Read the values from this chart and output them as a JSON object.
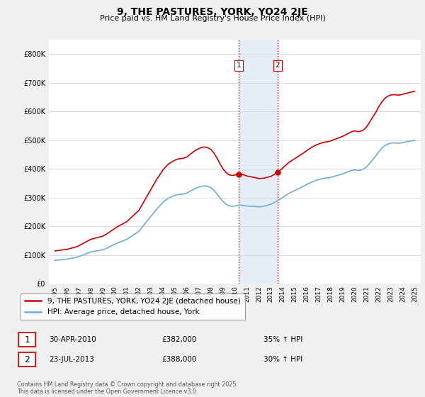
{
  "title": "9, THE PASTURES, YORK, YO24 2JE",
  "subtitle": "Price paid vs. HM Land Registry's House Price Index (HPI)",
  "ylim": [
    0,
    850000
  ],
  "yticks": [
    0,
    100000,
    200000,
    300000,
    400000,
    500000,
    600000,
    700000,
    800000
  ],
  "ytick_labels": [
    "£0",
    "£100K",
    "£200K",
    "£300K",
    "£400K",
    "£500K",
    "£600K",
    "£700K",
    "£800K"
  ],
  "hpi_color": "#6baed6",
  "price_color": "#cc0000",
  "marker_color": "#cc0000",
  "shading_color": "#c6dbef",
  "shading_alpha": 0.45,
  "vline_color": "#cc0000",
  "transaction1_x": 2010.33,
  "transaction1_y": 382000,
  "transaction2_x": 2013.55,
  "transaction2_y": 388000,
  "legend_line1": "9, THE PASTURES, YORK, YO24 2JE (detached house)",
  "legend_line2": "HPI: Average price, detached house, York",
  "annotation1_box": "1",
  "annotation1_date": "30-APR-2010",
  "annotation1_price": "£382,000",
  "annotation1_hpi": "35% ↑ HPI",
  "annotation2_box": "2",
  "annotation2_date": "23-JUL-2013",
  "annotation2_price": "£388,000",
  "annotation2_hpi": "30% ↑ HPI",
  "footer": "Contains HM Land Registry data © Crown copyright and database right 2025.\nThis data is licensed under the Open Government Licence v3.0.",
  "hpi_data_x": [
    1995,
    1995.25,
    1995.5,
    1995.75,
    1996,
    1996.25,
    1996.5,
    1996.75,
    1997,
    1997.25,
    1997.5,
    1997.75,
    1998,
    1998.25,
    1998.5,
    1998.75,
    1999,
    1999.25,
    1999.5,
    1999.75,
    2000,
    2000.25,
    2000.5,
    2000.75,
    2001,
    2001.25,
    2001.5,
    2001.75,
    2002,
    2002.25,
    2002.5,
    2002.75,
    2003,
    2003.25,
    2003.5,
    2003.75,
    2004,
    2004.25,
    2004.5,
    2004.75,
    2005,
    2005.25,
    2005.5,
    2005.75,
    2006,
    2006.25,
    2006.5,
    2006.75,
    2007,
    2007.25,
    2007.5,
    2007.75,
    2008,
    2008.25,
    2008.5,
    2008.75,
    2009,
    2009.25,
    2009.5,
    2009.75,
    2010,
    2010.25,
    2010.5,
    2010.75,
    2011,
    2011.25,
    2011.5,
    2011.75,
    2012,
    2012.25,
    2012.5,
    2012.75,
    2013,
    2013.25,
    2013.5,
    2013.75,
    2014,
    2014.25,
    2014.5,
    2014.75,
    2015,
    2015.25,
    2015.5,
    2015.75,
    2016,
    2016.25,
    2016.5,
    2016.75,
    2017,
    2017.25,
    2017.5,
    2017.75,
    2018,
    2018.25,
    2018.5,
    2018.75,
    2019,
    2019.25,
    2019.5,
    2019.75,
    2020,
    2020.25,
    2020.5,
    2020.75,
    2021,
    2021.25,
    2021.5,
    2021.75,
    2022,
    2022.25,
    2022.5,
    2022.75,
    2023,
    2023.25,
    2023.5,
    2023.75,
    2024,
    2024.25,
    2024.5,
    2024.75,
    2025
  ],
  "hpi_data_y": [
    82000,
    83000,
    84000,
    85000,
    86000,
    88000,
    90000,
    92000,
    95000,
    99000,
    103000,
    107000,
    111000,
    113000,
    115000,
    117000,
    119000,
    123000,
    128000,
    133000,
    138000,
    143000,
    147000,
    151000,
    155000,
    162000,
    169000,
    176000,
    183000,
    196000,
    209000,
    222000,
    235000,
    248000,
    261000,
    272000,
    283000,
    292000,
    299000,
    304000,
    308000,
    311000,
    312000,
    313000,
    316000,
    322000,
    328000,
    333000,
    337000,
    340000,
    341000,
    339000,
    335000,
    326000,
    314000,
    300000,
    287000,
    278000,
    272000,
    270000,
    271000,
    273000,
    274000,
    273000,
    271000,
    270000,
    270000,
    269000,
    268000,
    269000,
    271000,
    274000,
    277000,
    282000,
    288000,
    294000,
    301000,
    308000,
    315000,
    320000,
    325000,
    330000,
    335000,
    340000,
    346000,
    351000,
    356000,
    360000,
    363000,
    366000,
    368000,
    369000,
    371000,
    374000,
    377000,
    380000,
    383000,
    387000,
    391000,
    395000,
    397000,
    395000,
    396000,
    400000,
    408000,
    420000,
    433000,
    445000,
    460000,
    472000,
    481000,
    487000,
    490000,
    491000,
    490000,
    490000,
    492000,
    494000,
    496000,
    498000,
    500000
  ],
  "xlim_left": 1994.5,
  "xlim_right": 2025.5,
  "xtick_years": [
    1995,
    1996,
    1997,
    1998,
    1999,
    2000,
    2001,
    2002,
    2003,
    2004,
    2005,
    2006,
    2007,
    2008,
    2009,
    2010,
    2011,
    2012,
    2013,
    2014,
    2015,
    2016,
    2017,
    2018,
    2019,
    2020,
    2021,
    2022,
    2023,
    2024,
    2025
  ],
  "bg_color": "#f0f0f0",
  "plot_bg_color": "#ffffff"
}
